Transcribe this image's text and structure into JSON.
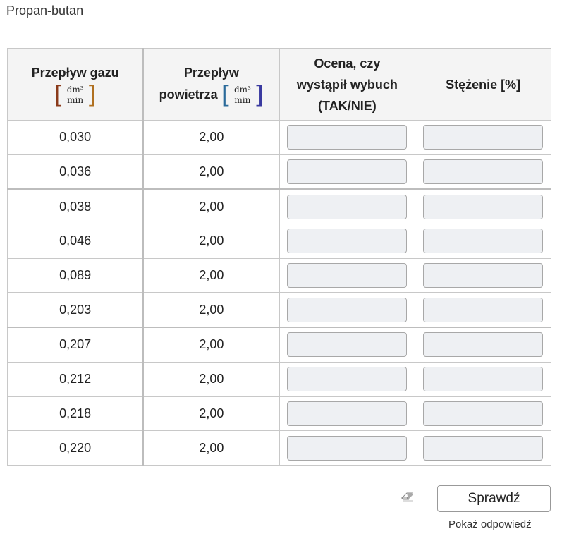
{
  "title": "Propan-butan",
  "headers": {
    "gas_flow": "Przepływ gazu",
    "air_flow_1": "Przepływ",
    "air_flow_2": "powietrza",
    "unit_num": "dm³",
    "unit_den": "min",
    "assessment_1": "Ocena, czy",
    "assessment_2": "wystąpił wybuch",
    "assessment_3": "(TAK/NIE)",
    "concentration": "Stężenie [%]"
  },
  "rows": [
    {
      "gas": "0,030",
      "air": "2,00"
    },
    {
      "gas": "0,036",
      "air": "2,00"
    },
    {
      "gas": "0,038",
      "air": "2,00"
    },
    {
      "gas": "0,046",
      "air": "2,00"
    },
    {
      "gas": "0,089",
      "air": "2,00"
    },
    {
      "gas": "0,203",
      "air": "2,00"
    },
    {
      "gas": "0,207",
      "air": "2,00"
    },
    {
      "gas": "0,212",
      "air": "2,00"
    },
    {
      "gas": "0,218",
      "air": "2,00"
    },
    {
      "gas": "0,220",
      "air": "2,00"
    }
  ],
  "check_label": "Sprawdź",
  "show_answer": "Pokaż odpowiedź",
  "icons": {
    "clear": "eraser-icon"
  }
}
